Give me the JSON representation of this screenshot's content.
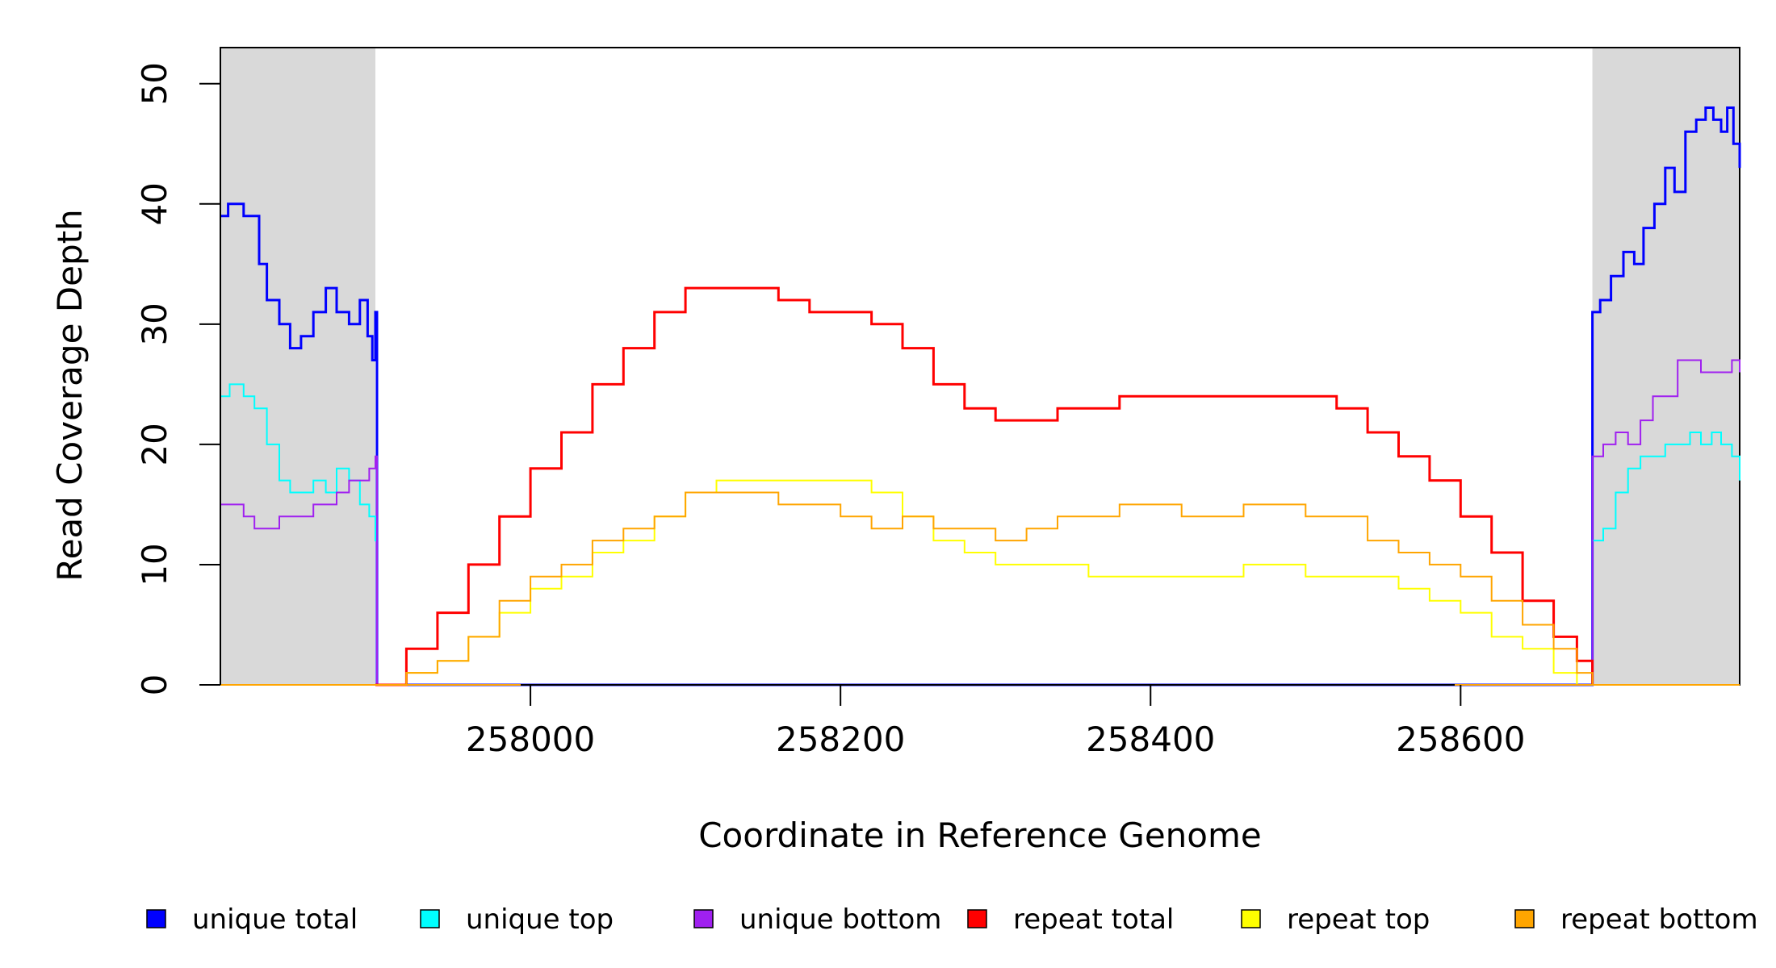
{
  "chart_data": {
    "type": "line",
    "title": "",
    "xlabel": "Coordinate in Reference Genome",
    "ylabel": "Read Coverage Depth",
    "xlim": [
      257800,
      258780
    ],
    "ylim": [
      0,
      53
    ],
    "x_ticks": [
      258000,
      258200,
      258400,
      258600
    ],
    "y_ticks": [
      0,
      10,
      20,
      30,
      40,
      50
    ],
    "grid": false,
    "legend_position": "bottom",
    "shaded_regions": [
      {
        "x_start": 257800,
        "x_end": 257900
      },
      {
        "x_start": 258685,
        "x_end": 258780
      }
    ],
    "series": [
      {
        "name": "unique total",
        "color": "#0000ff",
        "stroke_width": 3,
        "x": [
          257800,
          257805,
          257815,
          257825,
          257830,
          257838,
          257845,
          257852,
          257860,
          257868,
          257875,
          257883,
          257890,
          257895,
          257898,
          257900,
          257901,
          258684,
          258685,
          258690,
          258697,
          258705,
          258712,
          258718,
          258725,
          258732,
          258738,
          258745,
          258752,
          258758,
          258763,
          258768,
          258772,
          258776,
          258780
        ],
        "y": [
          39,
          40,
          39,
          35,
          32,
          30,
          28,
          29,
          31,
          33,
          31,
          30,
          32,
          29,
          27,
          31,
          0,
          0,
          31,
          32,
          34,
          36,
          35,
          38,
          40,
          43,
          41,
          46,
          47,
          48,
          47,
          46,
          48,
          45,
          43
        ]
      },
      {
        "name": "unique top",
        "color": "#00ffff",
        "stroke_width": 2,
        "x": [
          257800,
          257806,
          257815,
          257822,
          257830,
          257838,
          257845,
          257852,
          257860,
          257868,
          257875,
          257883,
          257890,
          257896,
          257900,
          257901,
          258684,
          258685,
          258692,
          258700,
          258708,
          258716,
          258724,
          258732,
          258740,
          258748,
          258755,
          258762,
          258768,
          258775,
          258780
        ],
        "y": [
          24,
          25,
          24,
          23,
          20,
          17,
          16,
          16,
          17,
          16,
          18,
          17,
          15,
          14,
          12,
          0,
          0,
          12,
          13,
          16,
          18,
          19,
          19,
          20,
          20,
          21,
          20,
          21,
          20,
          19,
          17
        ]
      },
      {
        "name": "unique bottom",
        "color": "#a020f0",
        "stroke_width": 2,
        "x": [
          257800,
          257806,
          257815,
          257822,
          257830,
          257838,
          257845,
          257852,
          257860,
          257868,
          257875,
          257883,
          257890,
          257896,
          257900,
          257901,
          258684,
          258685,
          258692,
          258700,
          258708,
          258716,
          258724,
          258732,
          258740,
          258748,
          258755,
          258762,
          258768,
          258775,
          258780
        ],
        "y": [
          15,
          15,
          14,
          13,
          13,
          14,
          14,
          14,
          15,
          15,
          16,
          17,
          17,
          18,
          19,
          0,
          0,
          19,
          20,
          21,
          20,
          22,
          24,
          24,
          27,
          27,
          26,
          26,
          26,
          27,
          26
        ]
      },
      {
        "name": "repeat total",
        "color": "#ff0000",
        "stroke_width": 3,
        "x": [
          257900,
          257920,
          257940,
          257960,
          257980,
          258000,
          258020,
          258040,
          258060,
          258080,
          258100,
          258120,
          258140,
          258160,
          258180,
          258200,
          258220,
          258240,
          258260,
          258280,
          258300,
          258320,
          258340,
          258360,
          258380,
          258400,
          258420,
          258440,
          258460,
          258480,
          258500,
          258520,
          258540,
          258560,
          258580,
          258600,
          258620,
          258640,
          258660,
          258675,
          258685
        ],
        "y": [
          0,
          3,
          6,
          10,
          14,
          18,
          21,
          25,
          28,
          31,
          33,
          33,
          33,
          32,
          31,
          31,
          30,
          28,
          25,
          23,
          22,
          22,
          23,
          23,
          24,
          24,
          24,
          24,
          24,
          24,
          24,
          23,
          21,
          19,
          17,
          14,
          11,
          7,
          4,
          2,
          0
        ]
      },
      {
        "name": "repeat top",
        "color": "#ffff00",
        "stroke_width": 2,
        "x": [
          257900,
          257920,
          257940,
          257960,
          257980,
          258000,
          258020,
          258040,
          258060,
          258080,
          258100,
          258120,
          258140,
          258160,
          258180,
          258200,
          258220,
          258240,
          258260,
          258280,
          258300,
          258320,
          258340,
          258360,
          258380,
          258400,
          258420,
          258440,
          258460,
          258480,
          258500,
          258520,
          258540,
          258560,
          258580,
          258600,
          258620,
          258640,
          258660,
          258675,
          258685
        ],
        "y": [
          0,
          1,
          2,
          4,
          6,
          8,
          9,
          11,
          12,
          14,
          16,
          17,
          17,
          17,
          17,
          17,
          16,
          14,
          12,
          11,
          10,
          10,
          10,
          9,
          9,
          9,
          9,
          9,
          10,
          10,
          9,
          9,
          9,
          8,
          7,
          6,
          4,
          3,
          1,
          0,
          0
        ]
      },
      {
        "name": "repeat bottom",
        "color": "#ffa500",
        "stroke_width": 2,
        "x": [
          257900,
          257920,
          257940,
          257960,
          257980,
          258000,
          258020,
          258040,
          258060,
          258080,
          258100,
          258120,
          258140,
          258160,
          258180,
          258200,
          258220,
          258240,
          258260,
          258280,
          258300,
          258320,
          258340,
          258360,
          258380,
          258400,
          258420,
          258440,
          258460,
          258480,
          258500,
          258520,
          258540,
          258560,
          258580,
          258600,
          258620,
          258640,
          258660,
          258675,
          258685
        ],
        "y": [
          0,
          1,
          2,
          4,
          7,
          9,
          10,
          12,
          13,
          14,
          16,
          16,
          16,
          15,
          15,
          14,
          13,
          14,
          13,
          13,
          12,
          13,
          14,
          14,
          15,
          15,
          14,
          14,
          15,
          15,
          14,
          14,
          12,
          11,
          10,
          9,
          7,
          5,
          3,
          1,
          0
        ]
      }
    ]
  }
}
